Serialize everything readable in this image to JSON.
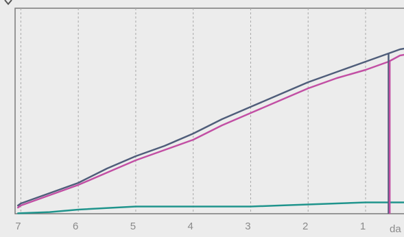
{
  "chart_data": {
    "type": "line",
    "xlabel": "da",
    "x_ticks": [
      7,
      6,
      5,
      4,
      3,
      2,
      1
    ],
    "xlim": [
      7.1,
      0.2
    ],
    "ylim": [
      0,
      100
    ],
    "grid": "vertical-dashed",
    "legend": "none",
    "colors": {
      "background": "#ececec",
      "plot_border": "#7a7a7a",
      "gridline": "#a8a8a8",
      "tick_label": "#8a8a8a"
    },
    "series": [
      {
        "color": "#4f5d7a",
        "points": [
          [
            7.05,
            4
          ],
          [
            7.0,
            5
          ],
          [
            6.5,
            10
          ],
          [
            6.0,
            15
          ],
          [
            5.5,
            22
          ],
          [
            5.0,
            28
          ],
          [
            4.5,
            33
          ],
          [
            4.0,
            39
          ],
          [
            3.5,
            46
          ],
          [
            3.0,
            52
          ],
          [
            2.5,
            58
          ],
          [
            2.0,
            64
          ],
          [
            1.5,
            69
          ],
          [
            1.0,
            74
          ],
          [
            0.6,
            78
          ],
          [
            0.4,
            80
          ],
          [
            0.2,
            81
          ]
        ]
      },
      {
        "color": "#c24fa4",
        "points": [
          [
            7.05,
            3
          ],
          [
            7.0,
            4
          ],
          [
            6.5,
            9
          ],
          [
            6.0,
            14
          ],
          [
            5.5,
            20
          ],
          [
            5.0,
            26
          ],
          [
            4.5,
            31
          ],
          [
            4.0,
            36
          ],
          [
            3.5,
            43
          ],
          [
            3.0,
            49
          ],
          [
            2.5,
            55
          ],
          [
            2.0,
            61
          ],
          [
            1.5,
            66
          ],
          [
            1.0,
            70
          ],
          [
            0.6,
            74
          ],
          [
            0.4,
            77
          ],
          [
            0.2,
            78
          ]
        ]
      },
      {
        "color": "#1f948c",
        "points": [
          [
            7.05,
            0.2
          ],
          [
            6.5,
            0.8
          ],
          [
            6.0,
            2
          ],
          [
            5.0,
            3.5
          ],
          [
            4.0,
            3.5
          ],
          [
            3.0,
            3.5
          ],
          [
            2.5,
            4
          ],
          [
            2.0,
            4.5
          ],
          [
            1.5,
            5
          ],
          [
            1.0,
            5.5
          ],
          [
            0.5,
            5.5
          ],
          [
            0.2,
            5.5
          ]
        ]
      }
    ],
    "markers": [
      {
        "x": 0.6,
        "color": "#4f5d7a",
        "y": 78
      },
      {
        "x": 0.58,
        "color": "#c24fa4",
        "y": 74
      }
    ]
  }
}
